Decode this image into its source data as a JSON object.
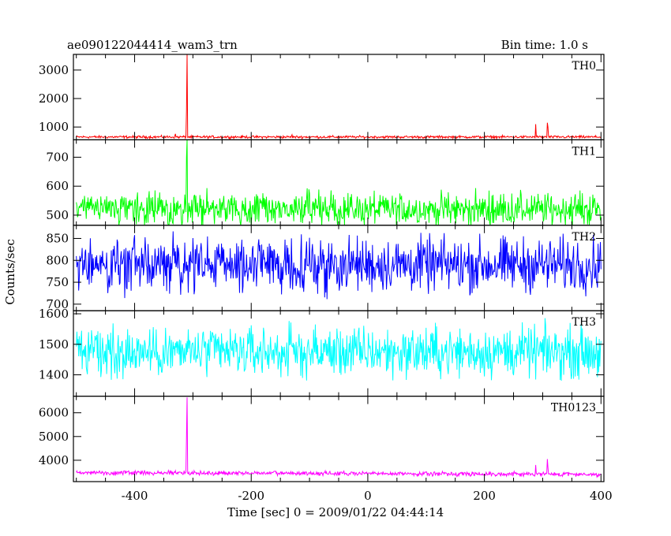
{
  "header": {
    "left_title": "ae090122044414_wam3_trn",
    "right_title": "Bin time: 1.0 s"
  },
  "chart_data": {
    "type": "line",
    "xlabel": "Time [sec] 0 = 2009/01/22 04:44:14",
    "ylabel": "Counts/sec",
    "xlim": [
      -505,
      405
    ],
    "x_ticks": [
      -400,
      -200,
      0,
      200,
      400
    ],
    "panels": [
      {
        "name": "TH0",
        "color": "#ff0000",
        "ylim": [
          550,
          3550
        ],
        "y_ticks": [
          1000,
          2000,
          3000
        ],
        "baseline": 650,
        "noise": 22,
        "spikes": [
          [
            -310,
            3550
          ],
          [
            -311,
            1600
          ],
          [
            288,
            1100
          ],
          [
            308,
            1150
          ],
          [
            309,
            1000
          ],
          [
            -330,
            760
          ],
          [
            -130,
            730
          ]
        ]
      },
      {
        "name": "TH1",
        "color": "#00ff00",
        "ylim": [
          465,
          760
        ],
        "y_ticks": [
          500,
          600,
          700
        ],
        "baseline": 520,
        "noise": 28,
        "spikes": [
          [
            -310,
            760
          ],
          [
            -311,
            700
          ]
        ]
      },
      {
        "name": "TH2",
        "color": "#0000ff",
        "ylim": [
          685,
          880
        ],
        "y_ticks": [
          700,
          750,
          800,
          850
        ],
        "baseline": 790,
        "noise": 30,
        "spikes": []
      },
      {
        "name": "TH3",
        "color": "#00ffff",
        "ylim": [
          1330,
          1610
        ],
        "y_ticks": [
          1400,
          1500,
          1600
        ],
        "baseline": 1475,
        "noise": 40,
        "spikes": []
      },
      {
        "name": "TH0123",
        "color": "#ff00ff",
        "ylim": [
          3100,
          6700
        ],
        "y_ticks": [
          4000,
          5000,
          6000
        ],
        "baseline": 3480,
        "noise": 45,
        "spikes": [
          [
            -310,
            6650
          ],
          [
            -311,
            5000
          ],
          [
            288,
            3800
          ],
          [
            308,
            4050
          ],
          [
            309,
            3700
          ]
        ]
      }
    ]
  }
}
